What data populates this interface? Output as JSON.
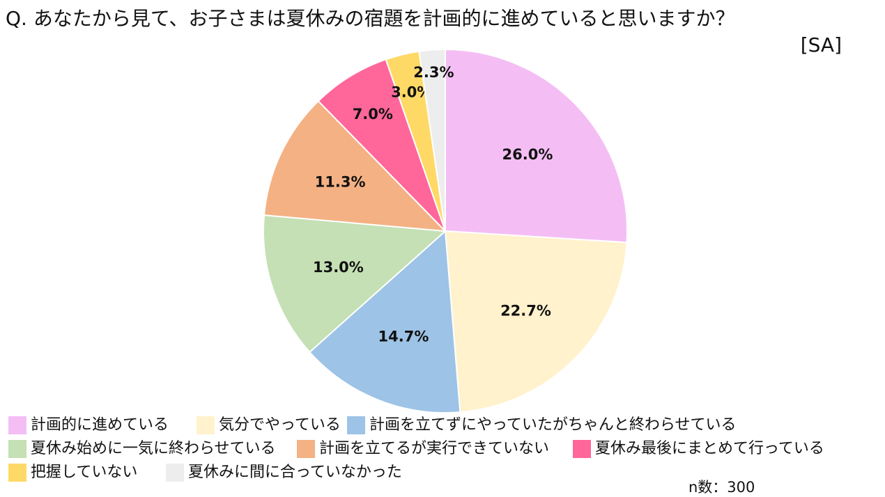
{
  "title": {
    "question": "Q. あなたから見て、お子さまは夏休みの宿題を計画的に進めていると思いますか？",
    "qualifier": "[SA]"
  },
  "sample_size": "n数：300",
  "chart_data": {
    "type": "pie",
    "title": "Q. あなたから見て、お子さまは夏休みの宿題を計画的に進めていると思いますか？ [SA]",
    "unit": "%",
    "legend_placement": "bottom",
    "slices": [
      {
        "name": "計画的に進めている",
        "value": 26.0,
        "label": "26.0%",
        "color": "#F4BEF4"
      },
      {
        "name": "気分でやっている",
        "value": 22.7,
        "label": "22.7%",
        "color": "#FFF2CC"
      },
      {
        "name": "計画を立てずにやっていたがちゃんと終わらせている",
        "value": 14.7,
        "label": "14.7%",
        "color": "#9DC3E6"
      },
      {
        "name": "夏休み始めに一気に終わらせている",
        "value": 13.0,
        "label": "13.0%",
        "color": "#C5E0B4"
      },
      {
        "name": "計画を立てるが実行できていない",
        "value": 11.3,
        "label": "11.3%",
        "color": "#F4B183"
      },
      {
        "name": "夏休み最後にまとめて行っている",
        "value": 7.0,
        "label": "7.0%",
        "color": "#FF6699"
      },
      {
        "name": "把握していない",
        "value": 3.0,
        "label": "3.0%",
        "color": "#FFD966"
      },
      {
        "name": "夏休みに間に合っていなかった",
        "value": 2.3,
        "label": "2.3%",
        "color": "#EDEDED"
      }
    ]
  }
}
